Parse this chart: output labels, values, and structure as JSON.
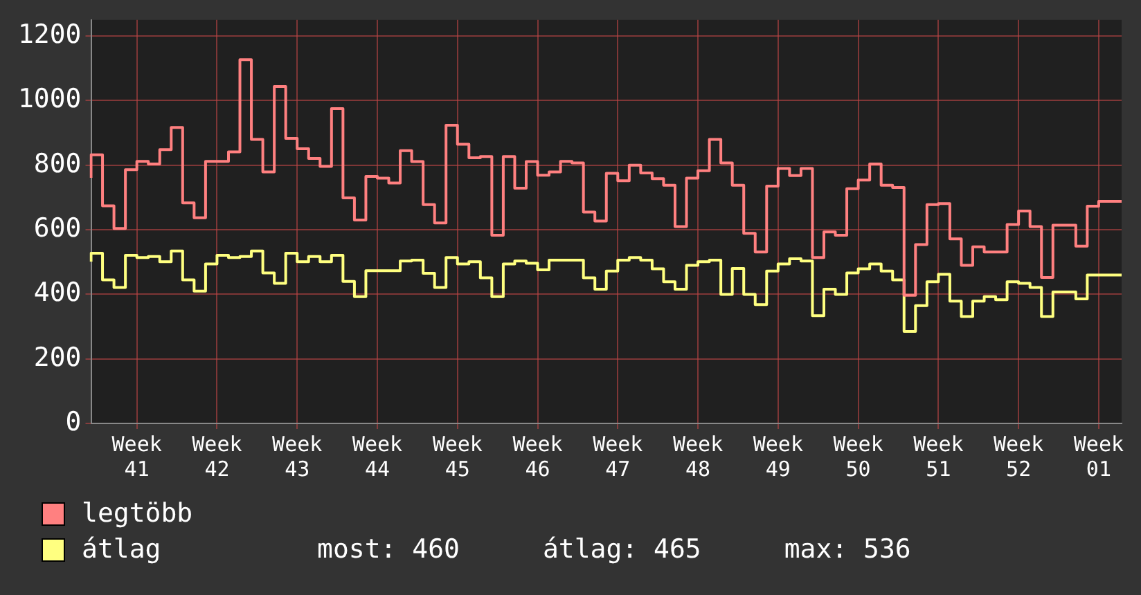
{
  "chart_data": {
    "type": "step",
    "categories": [
      null,
      null,
      null,
      null,
      "Week 41",
      null,
      null,
      null,
      null,
      null,
      null,
      "Week 42",
      null,
      null,
      null,
      null,
      null,
      null,
      "Week 43",
      null,
      null,
      null,
      null,
      null,
      null,
      "Week 44",
      null,
      null,
      null,
      null,
      null,
      null,
      "Week 45",
      null,
      null,
      null,
      null,
      null,
      null,
      "Week 46",
      null,
      null,
      null,
      null,
      null,
      null,
      "Week 47",
      null,
      null,
      null,
      null,
      null,
      null,
      "Week 48",
      null,
      null,
      null,
      null,
      null,
      null,
      "Week 49",
      null,
      null,
      null,
      null,
      null,
      null,
      "Week 50",
      null,
      null,
      null,
      null,
      null,
      null,
      "Week 51",
      null,
      null,
      null,
      null,
      null,
      null,
      "Week 52",
      null,
      null,
      null,
      null,
      null,
      null,
      "Week 01",
      null,
      null
    ],
    "ylim": [
      0,
      1250
    ],
    "yticks": [
      0,
      200,
      400,
      600,
      800,
      1000,
      1200
    ],
    "series": [
      {
        "name": "legtöbb",
        "color": "#ff8080",
        "values": [
          761,
          832,
          674,
          604,
          786,
          812,
          804,
          848,
          917,
          683,
          637,
          812,
          812,
          841,
          1127,
          880,
          779,
          1044,
          883,
          851,
          821,
          796,
          975,
          699,
          630,
          765,
          760,
          745,
          845,
          811,
          678,
          621,
          924,
          865,
          823,
          827,
          583,
          827,
          729,
          811,
          769,
          779,
          812,
          807,
          655,
          627,
          775,
          752,
          800,
          776,
          758,
          738,
          610,
          760,
          783,
          880,
          807,
          738,
          589,
          531,
          735,
          790,
          768,
          790,
          514,
          593,
          583,
          727,
          754,
          804,
          738,
          731,
          397,
          554,
          678,
          681,
          572,
          490,
          547,
          531,
          531,
          616,
          658,
          610,
          452,
          614,
          614,
          549,
          673,
          688,
          688
        ]
      },
      {
        "name": "átlag",
        "color": "#ffff80",
        "values": [
          501,
          527,
          445,
          421,
          521,
          514,
          517,
          501,
          534,
          445,
          410,
          494,
          521,
          514,
          517,
          534,
          466,
          434,
          527,
          501,
          517,
          501,
          521,
          440,
          393,
          473,
          473,
          473,
          503,
          506,
          465,
          421,
          514,
          494,
          501,
          451,
          393,
          494,
          503,
          496,
          476,
          506,
          506,
          506,
          451,
          416,
          472,
          506,
          514,
          506,
          479,
          439,
          416,
          490,
          501,
          506,
          400,
          480,
          400,
          368,
          472,
          494,
          510,
          503,
          334,
          416,
          400,
          466,
          479,
          494,
          472,
          445,
          285,
          365,
          439,
          462,
          379,
          331,
          379,
          393,
          383,
          439,
          434,
          421,
          331,
          407,
          407,
          386,
          460,
          460,
          460
        ]
      }
    ],
    "grid": true,
    "legend": "bottom left",
    "annotations": [
      "most: 460",
      "átlag: 465",
      "max: 536"
    ]
  }
}
